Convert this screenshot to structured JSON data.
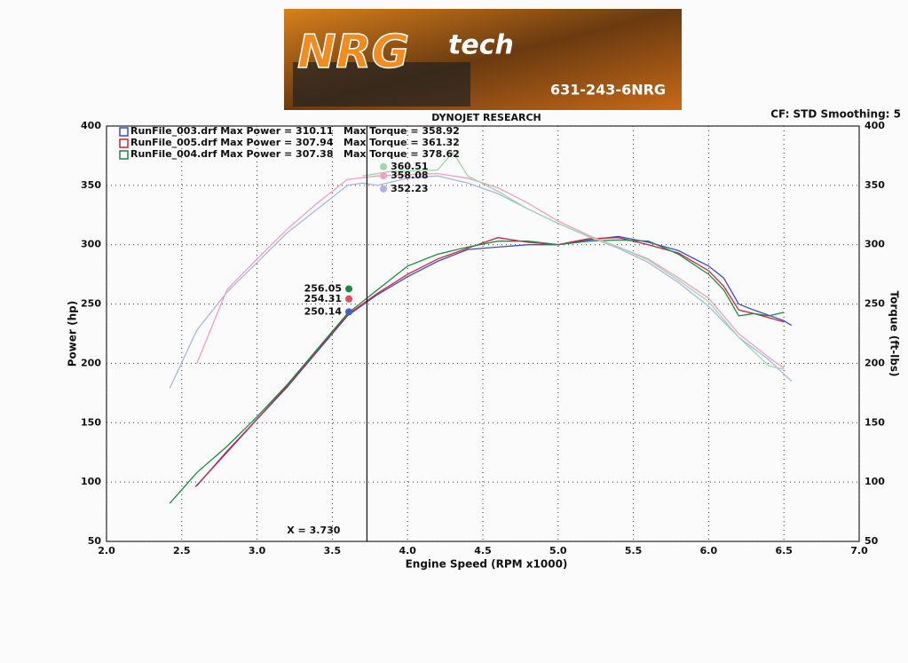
{
  "logo": {
    "brand": "NRG",
    "sub": "tech",
    "phone": "631-243-6NRG"
  },
  "chart_data": {
    "type": "line",
    "title": "DYNOJET RESEARCH",
    "subtitle": "CF: STD  Smoothing: 5",
    "x_label": "Engine Speed (RPM x1000)",
    "y_label": "Power (hp)",
    "y2_label": "Torque (ft-lbs)",
    "xlim": [
      2.0,
      7.0
    ],
    "xticks": [
      {
        "value": 2,
        "label": "2.0"
      },
      2.5,
      {
        "value": 3,
        "label": "3.0"
      },
      3.5,
      {
        "value": 4,
        "label": "4.0"
      },
      4.5,
      {
        "value": 5,
        "label": "5.0"
      },
      5.5,
      {
        "value": 6,
        "label": "6.0"
      },
      6.5,
      {
        "value": 7,
        "label": "7.0"
      }
    ],
    "ylim": [
      50,
      400
    ],
    "yticks": [
      50,
      100,
      150,
      200,
      250,
      300,
      350,
      400
    ],
    "y2lim": [
      50,
      400
    ],
    "y2ticks": [
      50,
      100,
      150,
      200,
      250,
      300,
      350,
      400
    ],
    "grid": true,
    "legend": [
      {
        "label": "RunFile_003.drf Max Power = 310.11",
        "torque_label": "Max Torque = 358.92",
        "color": "#3a4fc4"
      },
      {
        "label": "RunFile_005.drf Max Power = 307.94",
        "torque_label": "Max Torque = 361.32",
        "color": "#d02040"
      },
      {
        "label": "RunFile_004.drf Max Power = 307.38",
        "torque_label": "Max Torque = 378.62",
        "color": "#1e8a40"
      }
    ],
    "series": [
      {
        "color": "#3a4fc4",
        "x": [
          2.59,
          2.8,
          3.0,
          3.2,
          3.4,
          3.6,
          3.8,
          4.0,
          4.2,
          4.4,
          4.6,
          4.8,
          5.0,
          5.2,
          5.4,
          5.6,
          5.8,
          6.0,
          6.1,
          6.2,
          6.3,
          6.5,
          6.55
        ],
        "values": [
          96,
          125,
          153,
          180,
          210,
          240,
          258,
          273,
          286,
          296,
          298,
          300,
          300,
          304,
          307,
          302,
          295,
          282,
          272,
          250,
          245,
          236,
          232
        ]
      },
      {
        "color": "#d02040",
        "x": [
          2.6,
          2.8,
          3.0,
          3.2,
          3.4,
          3.6,
          3.8,
          4.0,
          4.2,
          4.4,
          4.6,
          4.8,
          5.0,
          5.2,
          5.4,
          5.6,
          5.8,
          6.0,
          6.1,
          6.2,
          6.3,
          6.5
        ],
        "values": [
          97,
          126,
          153,
          181,
          211,
          241,
          259,
          275,
          288,
          297,
          306,
          302,
          300,
          305,
          306,
          300,
          293,
          278,
          265,
          245,
          242,
          235
        ]
      },
      {
        "color": "#1e8a40",
        "x": [
          2.42,
          2.6,
          2.8,
          3.0,
          3.2,
          3.4,
          3.6,
          3.8,
          4.0,
          4.2,
          4.4,
          4.6,
          4.8,
          5.0,
          5.2,
          5.4,
          5.6,
          5.8,
          6.0,
          6.1,
          6.2,
          6.3,
          6.4,
          6.5
        ],
        "values": [
          82,
          108,
          130,
          155,
          182,
          212,
          242,
          262,
          282,
          292,
          298,
          303,
          303,
          300,
          303,
          304,
          303,
          292,
          275,
          262,
          240,
          242,
          240,
          243
        ]
      },
      {
        "color": "#aab4e6",
        "axis": "y2",
        "x": [
          2.42,
          2.6,
          2.8,
          3.0,
          3.2,
          3.4,
          3.6,
          3.7,
          3.8,
          4.0,
          4.2,
          4.4,
          4.6,
          4.8,
          5.0,
          5.2,
          5.4,
          5.6,
          5.8,
          6.0,
          6.2,
          6.4,
          6.55
        ],
        "values": [
          179,
          228,
          260,
          285,
          310,
          330,
          350,
          352,
          350,
          356,
          358,
          352,
          343,
          330,
          318,
          307,
          297,
          285,
          268,
          248,
          222,
          203,
          185
        ]
      },
      {
        "color": "#f0a0c0",
        "axis": "y2",
        "x": [
          2.6,
          2.8,
          3.0,
          3.2,
          3.4,
          3.6,
          3.8,
          4.0,
          4.2,
          4.4,
          4.6,
          4.8,
          5.0,
          5.2,
          5.4,
          5.6,
          5.8,
          6.0,
          6.2,
          6.4,
          6.5
        ],
        "values": [
          200,
          262,
          288,
          313,
          335,
          355,
          358,
          359,
          360,
          356,
          348,
          335,
          320,
          308,
          298,
          288,
          272,
          255,
          225,
          205,
          196
        ]
      },
      {
        "color": "#9ed8a8",
        "axis": "y2",
        "x": [
          3.7,
          3.9,
          4.0,
          4.2,
          4.3,
          4.4,
          4.6,
          4.8,
          5.0,
          5.2,
          5.4,
          5.6,
          5.8,
          6.0,
          6.2,
          6.4,
          6.5
        ],
        "values": [
          358,
          362,
          362,
          363,
          378,
          358,
          345,
          330,
          318,
          307,
          298,
          287,
          270,
          252,
          222,
          198,
          195
        ]
      }
    ],
    "cursor": {
      "x": 3.73,
      "label": "X = 3.730"
    },
    "power_points": [
      {
        "x": 3.61,
        "value": 256.05,
        "color": "#1e8a40"
      },
      {
        "x": 3.61,
        "value": 254.31,
        "color": "#e05060"
      },
      {
        "x": 3.61,
        "value": 250.14,
        "color": "#4060d0"
      }
    ],
    "torque_points": [
      {
        "x": 3.84,
        "value": 360.51,
        "color": "#9ed8a8"
      },
      {
        "x": 3.84,
        "value": 358.08,
        "color": "#f0a0c0"
      },
      {
        "x": 3.84,
        "value": 352.23,
        "color": "#aab4e6"
      }
    ]
  }
}
